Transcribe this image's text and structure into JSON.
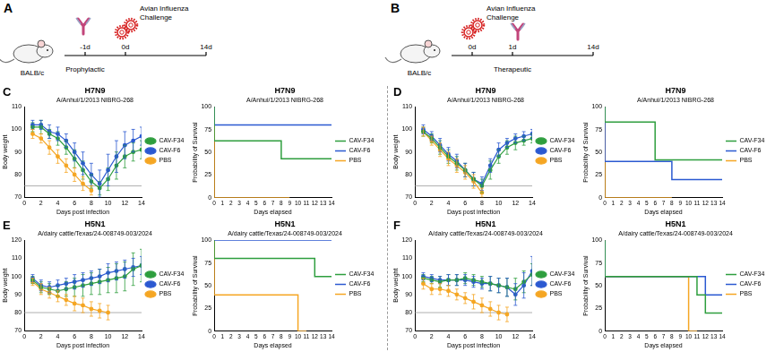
{
  "diagrams": [
    {
      "letter": "A",
      "subject": "BALB/c",
      "event": "Avian Influenza Challenge",
      "timeline": [
        "-1d",
        "0d",
        "14d"
      ],
      "antibody_at": "-1d",
      "challenge_at": "0d",
      "regimen": "Prophylactic",
      "regimen_at": "-1d"
    },
    {
      "letter": "B",
      "subject": "BALB/c",
      "event": "Avian Influenza Challenge",
      "timeline": [
        "0d",
        "1d",
        "14d"
      ],
      "antibody_at": "1d",
      "challenge_at": "0d",
      "regimen": "Therapeutic",
      "regimen_at": "1d"
    }
  ],
  "chart_data": [
    {
      "panel": "C",
      "type": "line",
      "title": "H7N9",
      "subtitle": "A/Anhui/1/2013 NIBRG-268",
      "x_label": "Days post infection",
      "y_label": "Body weight",
      "x": [
        1,
        2,
        3,
        4,
        5,
        6,
        7,
        8,
        9,
        10,
        11,
        12,
        13,
        14
      ],
      "xlim": [
        0,
        14
      ],
      "xticks": [
        0,
        2,
        4,
        6,
        8,
        10,
        12,
        14
      ],
      "ylim": [
        70,
        110
      ],
      "yticks": [
        70,
        80,
        90,
        100,
        110
      ],
      "reference_line": 75,
      "grid": false,
      "legend": "right",
      "marker": "circle",
      "series": [
        {
          "name": "CAV-F34",
          "color": "#2e9e3e",
          "values": [
            101,
            101,
            98,
            96,
            92,
            87,
            82,
            77,
            74,
            78,
            84,
            88,
            90,
            91
          ],
          "errors": [
            2,
            3,
            2,
            3,
            3,
            4,
            4,
            3,
            3,
            5,
            6,
            5,
            4,
            4
          ]
        },
        {
          "name": "CAV-F6",
          "color": "#2b59d1",
          "values": [
            102,
            102,
            99,
            98,
            95,
            90,
            85,
            80,
            76,
            82,
            88,
            93,
            95,
            97
          ],
          "errors": [
            2,
            2,
            3,
            3,
            3,
            4,
            5,
            5,
            6,
            7,
            7,
            6,
            5,
            4
          ]
        },
        {
          "name": "PBS",
          "color": "#f5a623",
          "values": [
            98,
            96,
            92,
            88,
            84,
            80,
            76,
            73,
            null,
            null,
            null,
            null,
            null,
            null
          ],
          "errors": [
            2,
            2,
            3,
            3,
            3,
            3,
            3,
            2,
            null,
            null,
            null,
            null,
            null,
            null
          ]
        }
      ]
    },
    {
      "type": "step",
      "title": "H7N9",
      "subtitle": "A/Anhui/1/2013 NIBRG-268",
      "x_label": "Days elapsed",
      "y_label": "Probability of Survival",
      "xlim": [
        0,
        14
      ],
      "xticks": [
        0,
        1,
        2,
        3,
        4,
        5,
        6,
        7,
        8,
        9,
        10,
        11,
        12,
        13,
        14
      ],
      "ylim": [
        0,
        100
      ],
      "yticks": [
        0,
        25,
        50,
        75,
        100
      ],
      "grid": false,
      "legend": "right",
      "series": [
        {
          "name": "CAV-F34",
          "color": "#2e9e3e",
          "x": [
            0,
            8,
            9,
            14
          ],
          "values": [
            100,
            62.5,
            42.9,
            42.9
          ]
        },
        {
          "name": "CAV-F6",
          "color": "#2b59d1",
          "x": [
            0,
            9,
            14
          ],
          "values": [
            100,
            80,
            80
          ]
        },
        {
          "name": "PBS",
          "color": "#f5a623",
          "x": [
            0,
            9
          ],
          "values": [
            100,
            0
          ]
        }
      ]
    },
    {
      "panel": "D",
      "type": "line",
      "title": "H7N9",
      "subtitle": "A/Anhui/1/2013 NIBRG-268",
      "x_label": "Days post infection",
      "y_label": "Body weight",
      "x": [
        1,
        2,
        3,
        4,
        5,
        6,
        7,
        8,
        9,
        10,
        11,
        12,
        13,
        14
      ],
      "xlim": [
        0,
        14
      ],
      "xticks": [
        0,
        2,
        4,
        6,
        8,
        10,
        12,
        14
      ],
      "ylim": [
        70,
        110
      ],
      "yticks": [
        70,
        80,
        90,
        100,
        110
      ],
      "reference_line": 75,
      "grid": false,
      "legend": "right",
      "marker": "circle",
      "series": [
        {
          "name": "CAV-F34",
          "color": "#2e9e3e",
          "values": [
            99,
            96,
            92,
            88,
            85,
            82,
            78,
            75,
            82,
            88,
            92,
            94,
            95,
            96
          ],
          "errors": [
            2,
            2,
            3,
            3,
            3,
            3,
            3,
            3,
            4,
            3,
            3,
            3,
            2,
            2
          ]
        },
        {
          "name": "CAV-F6",
          "color": "#2b59d1",
          "values": [
            100,
            97,
            93,
            89,
            86,
            82,
            78,
            76,
            84,
            91,
            94,
            96,
            97,
            98
          ],
          "errors": [
            2,
            2,
            3,
            3,
            3,
            3,
            3,
            3,
            3,
            3,
            2,
            2,
            2,
            2
          ]
        },
        {
          "name": "PBS",
          "color": "#f5a623",
          "values": [
            99,
            95,
            91,
            87,
            84,
            81,
            77,
            72,
            null,
            null,
            null,
            null,
            null,
            null
          ],
          "errors": [
            2,
            2,
            3,
            3,
            3,
            3,
            3,
            2,
            null,
            null,
            null,
            null,
            null,
            null
          ]
        }
      ]
    },
    {
      "type": "step",
      "title": "H7N9",
      "subtitle": "A/Anhui/1/2013 NIBRG-268",
      "x_label": "Days elapsed",
      "y_label": "Probability of Survival",
      "xlim": [
        0,
        14
      ],
      "xticks": [
        0,
        1,
        2,
        3,
        4,
        5,
        6,
        7,
        8,
        9,
        10,
        11,
        12,
        13,
        14
      ],
      "ylim": [
        0,
        100
      ],
      "yticks": [
        0,
        25,
        50,
        75,
        100
      ],
      "grid": false,
      "legend": "right",
      "series": [
        {
          "name": "CAV-F34",
          "color": "#2e9e3e",
          "x": [
            0,
            6,
            7,
            14
          ],
          "values": [
            100,
            83.3,
            41.7,
            41.7
          ]
        },
        {
          "name": "CAV-F6",
          "color": "#2b59d1",
          "x": [
            0,
            8,
            9,
            14
          ],
          "values": [
            100,
            40,
            20,
            20
          ]
        },
        {
          "name": "PBS",
          "color": "#f5a623",
          "x": [
            0,
            8
          ],
          "values": [
            100,
            0
          ]
        }
      ]
    },
    {
      "panel": "E",
      "type": "line",
      "title": "H5N1",
      "subtitle": "A/dairy cattle/Texas/24-008749-003/2024",
      "x_label": "Days post infection",
      "y_label": "Body weight",
      "x": [
        1,
        2,
        3,
        4,
        5,
        6,
        7,
        8,
        9,
        10,
        11,
        12,
        13,
        14
      ],
      "xlim": [
        0,
        14
      ],
      "xticks": [
        0,
        2,
        4,
        6,
        8,
        10,
        12,
        14
      ],
      "ylim": [
        70,
        120
      ],
      "yticks": [
        70,
        80,
        90,
        100,
        110,
        120
      ],
      "reference_line": 80,
      "grid": false,
      "legend": "right",
      "marker": "circle",
      "series": [
        {
          "name": "CAV-F34",
          "color": "#2e9e3e",
          "values": [
            98,
            94,
            93,
            92,
            93,
            94,
            95,
            96,
            97,
            98,
            99,
            100,
            104,
            106
          ],
          "errors": [
            2,
            3,
            3,
            3,
            4,
            5,
            6,
            6,
            7,
            7,
            8,
            8,
            9,
            9
          ]
        },
        {
          "name": "CAV-F6",
          "color": "#2b59d1",
          "values": [
            99,
            95,
            94,
            95,
            96,
            97,
            98,
            99,
            100,
            102,
            103,
            104,
            105,
            106
          ],
          "errors": [
            2,
            3,
            3,
            3,
            3,
            4,
            4,
            4,
            4,
            5,
            5,
            5,
            5,
            5
          ]
        },
        {
          "name": "PBS",
          "color": "#f5a623",
          "values": [
            97,
            93,
            91,
            89,
            87,
            85,
            84,
            82,
            81,
            80,
            null,
            null,
            null,
            null
          ],
          "errors": [
            2,
            3,
            3,
            3,
            3,
            4,
            4,
            4,
            4,
            4,
            null,
            null,
            null,
            null
          ]
        }
      ]
    },
    {
      "type": "step",
      "title": "H5N1",
      "subtitle": "A/dairy cattle/Texas/24-008749-003/2024",
      "x_label": "Days elapsed",
      "y_label": "Probability of Survival",
      "xlim": [
        0,
        14
      ],
      "xticks": [
        0,
        1,
        2,
        3,
        4,
        5,
        6,
        7,
        8,
        9,
        10,
        11,
        12,
        13,
        14
      ],
      "ylim": [
        0,
        100
      ],
      "yticks": [
        0,
        25,
        50,
        75,
        100
      ],
      "grid": false,
      "legend": "right",
      "series": [
        {
          "name": "CAV-F34",
          "color": "#2e9e3e",
          "x": [
            0,
            12,
            13,
            14
          ],
          "values": [
            100,
            80,
            60,
            60
          ]
        },
        {
          "name": "CAV-F6",
          "color": "#2b59d1",
          "x": [
            0,
            14
          ],
          "values": [
            100,
            100
          ]
        },
        {
          "name": "PBS",
          "color": "#f5a623",
          "x": [
            0,
            10,
            11
          ],
          "values": [
            100,
            40,
            0
          ]
        }
      ]
    },
    {
      "panel": "F",
      "type": "line",
      "title": "H5N1",
      "subtitle": "A/dairy cattle/Texas/24-008749-003/2024",
      "x_label": "Days post infection",
      "y_label": "Body weight",
      "x": [
        1,
        2,
        3,
        4,
        5,
        6,
        7,
        8,
        9,
        10,
        11,
        12,
        13,
        14
      ],
      "xlim": [
        0,
        14
      ],
      "xticks": [
        0,
        2,
        4,
        6,
        8,
        10,
        12,
        14
      ],
      "ylim": [
        70,
        120
      ],
      "yticks": [
        70,
        80,
        90,
        100,
        110,
        120
      ],
      "reference_line": 80,
      "grid": false,
      "legend": "right",
      "marker": "circle",
      "series": [
        {
          "name": "CAV-F34",
          "color": "#2e9e3e",
          "values": [
            99,
            98,
            97,
            98,
            98,
            99,
            98,
            97,
            96,
            95,
            94,
            93,
            97,
            101
          ],
          "errors": [
            2,
            2,
            3,
            3,
            3,
            3,
            3,
            3,
            4,
            4,
            5,
            6,
            6,
            6
          ]
        },
        {
          "name": "CAV-F6",
          "color": "#2b59d1",
          "values": [
            100,
            99,
            98,
            98,
            98,
            98,
            97,
            96,
            96,
            95,
            94,
            90,
            95,
            103
          ],
          "errors": [
            2,
            2,
            2,
            3,
            3,
            3,
            3,
            3,
            4,
            4,
            5,
            6,
            7,
            8
          ]
        },
        {
          "name": "PBS",
          "color": "#f5a623",
          "values": [
            96,
            93,
            93,
            92,
            90,
            88,
            86,
            84,
            82,
            80,
            79,
            null,
            null,
            null
          ],
          "errors": [
            3,
            3,
            3,
            3,
            3,
            3,
            4,
            4,
            4,
            4,
            4,
            null,
            null,
            null
          ]
        }
      ]
    },
    {
      "type": "step",
      "title": "H5N1",
      "subtitle": "A/dairy cattle/Texas/24-008749-003/2024",
      "x_label": "Days elapsed",
      "y_label": "Probability of Survival",
      "xlim": [
        0,
        14
      ],
      "xticks": [
        0,
        1,
        2,
        3,
        4,
        5,
        6,
        7,
        8,
        9,
        10,
        11,
        12,
        13,
        14
      ],
      "ylim": [
        0,
        100
      ],
      "yticks": [
        0,
        25,
        50,
        75,
        100
      ],
      "grid": false,
      "legend": "right",
      "series": [
        {
          "name": "CAV-F34",
          "color": "#2e9e3e",
          "x": [
            0,
            11,
            12,
            13,
            14
          ],
          "values": [
            100,
            60,
            40,
            20,
            20
          ]
        },
        {
          "name": "CAV-F6",
          "color": "#2b59d1",
          "x": [
            0,
            12,
            13,
            14
          ],
          "values": [
            100,
            60,
            40,
            40
          ]
        },
        {
          "name": "PBS",
          "color": "#f5a623",
          "x": [
            0,
            10,
            11
          ],
          "values": [
            100,
            60,
            0
          ]
        }
      ]
    }
  ]
}
